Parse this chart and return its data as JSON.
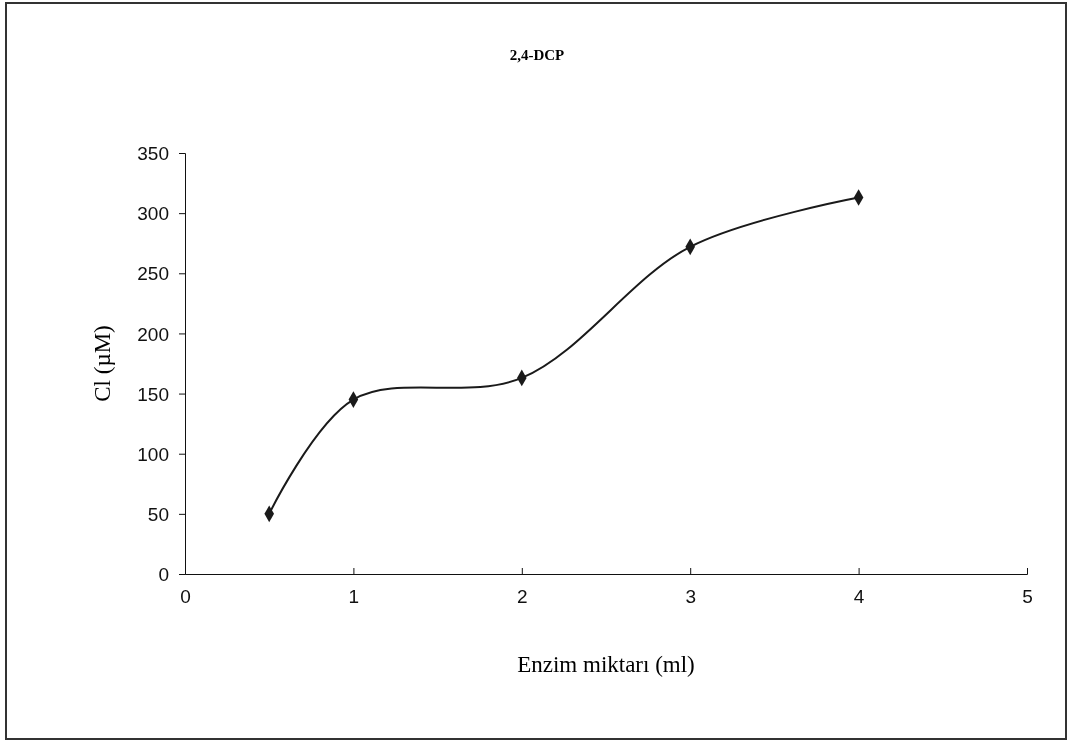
{
  "chart_data": {
    "type": "line",
    "title": "2,4-DCP",
    "xlabel": "Enzim miktarı (ml)",
    "ylabel": "Cl (µM)",
    "x": [
      0.5,
      1,
      2,
      3,
      4
    ],
    "series": [
      {
        "color": "#1a1a1a",
        "values": [
          50,
          145,
          163,
          272,
          313
        ]
      }
    ],
    "xlim": [
      0,
      5
    ],
    "xticks": [
      0,
      1,
      2,
      3,
      4,
      5
    ],
    "ylim": [
      0,
      350
    ],
    "yticks": [
      0,
      50,
      100,
      150,
      200,
      250,
      300,
      350
    ],
    "grid": false,
    "marker": "diamond",
    "line_style": "solid"
  }
}
